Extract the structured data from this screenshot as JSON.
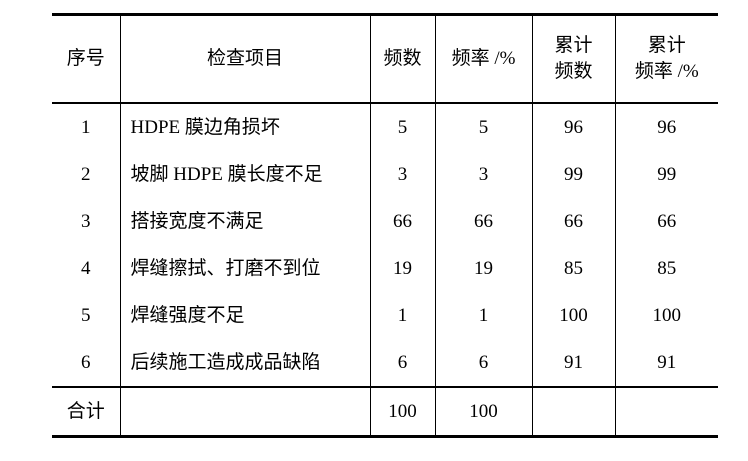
{
  "table": {
    "headers": [
      "序号",
      "检查项目",
      "频数",
      "频率 /%",
      "累计\n频数",
      "累计\n频率 /%"
    ],
    "header_lines": [
      [
        "序号"
      ],
      [
        "检查项目"
      ],
      [
        "频数"
      ],
      [
        "频率 /%"
      ],
      [
        "累计",
        "频数"
      ],
      [
        "累计",
        "频率 /%"
      ]
    ],
    "rows": [
      [
        "1",
        "HDPE 膜边角损坏",
        "5",
        "5",
        "96",
        "96"
      ],
      [
        "2",
        "坡脚 HDPE 膜长度不足",
        "3",
        "3",
        "99",
        "99"
      ],
      [
        "3",
        "搭接宽度不满足",
        "66",
        "66",
        "66",
        "66"
      ],
      [
        "4",
        "焊缝擦拭、打磨不到位",
        "19",
        "19",
        "85",
        "85"
      ],
      [
        "5",
        "焊缝强度不足",
        "1",
        "1",
        "100",
        "100"
      ],
      [
        "6",
        "后续施工造成成品缺陷",
        "6",
        "6",
        "91",
        "91"
      ]
    ],
    "total": [
      "合计",
      "",
      "100",
      "100",
      "",
      ""
    ]
  }
}
